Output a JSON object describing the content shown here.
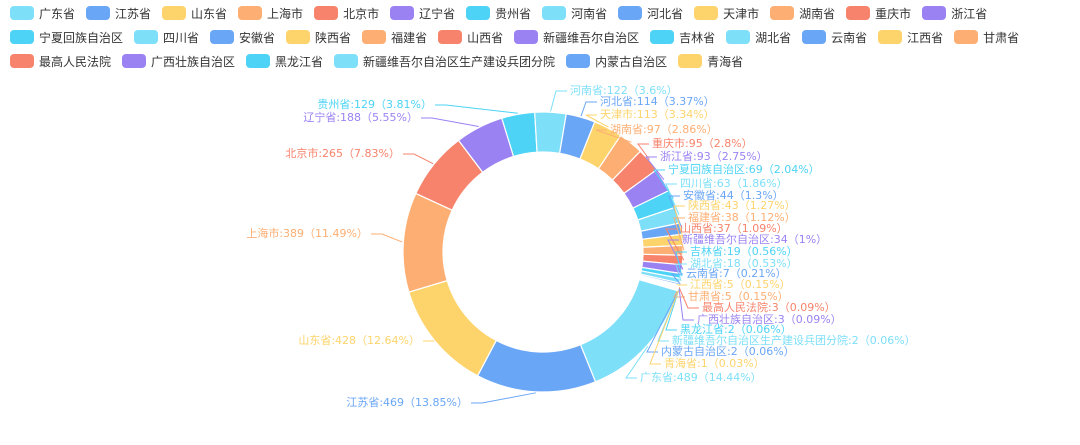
{
  "chart_data": {
    "type": "donut",
    "categories": [
      "广东省",
      "江苏省",
      "山东省",
      "上海市",
      "北京市",
      "辽宁省",
      "贵州省",
      "河南省",
      "河北省",
      "天津市",
      "湖南省",
      "重庆市",
      "浙江省",
      "宁夏回族自治区",
      "四川省",
      "安徽省",
      "陕西省",
      "福建省",
      "山西省",
      "新疆维吾尔自治区",
      "吉林省",
      "湖北省",
      "云南省",
      "江西省",
      "甘肃省",
      "最高人民法院",
      "广西壮族自治区",
      "黑龙江省",
      "新疆维吾尔自治区生产建设兵团分院",
      "内蒙古自治区",
      "青海省"
    ],
    "values": [
      489,
      469,
      428,
      389,
      265,
      188,
      129,
      122,
      114,
      113,
      97,
      95,
      93,
      69,
      63,
      44,
      43,
      38,
      37,
      34,
      19,
      18,
      7,
      5,
      5,
      3,
      3,
      2,
      2,
      2,
      1
    ],
    "value_labels": [
      "广东省:489（14.44%）",
      "江苏省:469（13.85%）",
      "山东省:428（12.64%）",
      "上海市:389（11.49%）",
      "北京市:265（7.83%）",
      "辽宁省:188（5.55%）",
      "贵州省:129（3.81%）",
      "河南省:122（3.6%）",
      "河北省:114（3.37%）",
      "天津市:113（3.34%）",
      "湖南省:97（2.86%）",
      "重庆市:95（2.8%）",
      "浙江省:93（2.75%）",
      "宁夏回族自治区:69（2.04%）",
      "四川省:63（1.86%）",
      "安徽省:44（1.3%）",
      "陕西省:43（1.27%）",
      "福建省:38（1.12%）",
      "山西省:37（1.09%）",
      "新疆维吾尔自治区:34（1%）",
      "吉林省:19（0.56%）",
      "湖北省:18（0.53%）",
      "云南省:7（0.21%）",
      "江西省:5（0.15%）",
      "甘肃省:5（0.15%）",
      "最高人民法院:3（0.09%）",
      "广西壮族自治区:3（0.09%）",
      "黑龙江省:2（0.06%）",
      "新疆维吾尔自治区生产建设兵团分院:2（0.06%）",
      "内蒙古自治区:2（0.06%）",
      "青海省:1（0.03%）"
    ],
    "colors": [
      "#7ddff8",
      "#6aa6f6",
      "#fdd46c",
      "#fdae72",
      "#f7836c",
      "#9b82f3",
      "#4cd3f5",
      "#7ddff8",
      "#6aa6f6",
      "#fdd46c",
      "#fdae72",
      "#f7836c",
      "#9b82f3",
      "#4cd3f5",
      "#7ddff8",
      "#6aa6f6",
      "#fdd46c",
      "#fdae72",
      "#f7836c",
      "#9b82f3",
      "#4cd3f5",
      "#7ddff8",
      "#6aa6f6",
      "#fdd46c",
      "#fdae72",
      "#f7836c",
      "#9b82f3",
      "#4cd3f5",
      "#7ddff8",
      "#6aa6f6",
      "#fdd46c"
    ],
    "legend": "top"
  }
}
